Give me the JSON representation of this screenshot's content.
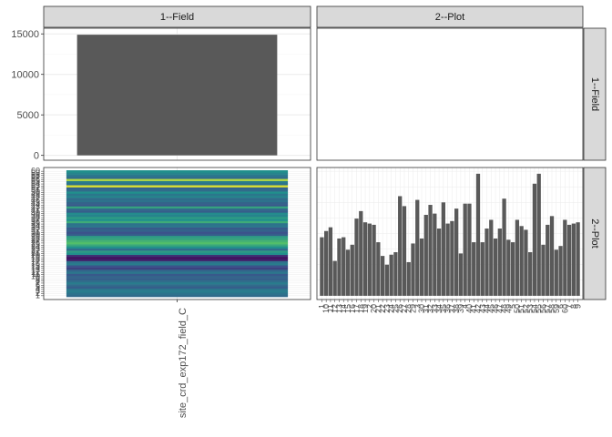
{
  "colors": {
    "strip_fill": "#d9d9d9",
    "panel_border": "#333333",
    "grid_major": "#ebebeb",
    "grid_minor": "#f5f5f5",
    "bar": "#595959",
    "viridis_low": "#440154",
    "viridis_mid": "#21908c",
    "viridis_high": "#fde725"
  },
  "chart_data": [
    {
      "type": "bar",
      "panel": "1--Field x 1--Field",
      "col_facet": "1--Field",
      "row_facet": "1--Field",
      "categories": [
        "site_crd_exp172_field_C"
      ],
      "values": [
        14900
      ],
      "ylim": [
        -600,
        15700
      ],
      "yticks": [
        0,
        5000,
        10000,
        15000
      ],
      "ytick_labels": [
        "0",
        "5000",
        "10000",
        "15000"
      ],
      "grid": true
    },
    {
      "type": "heatmap",
      "panel": "1--Field x 2--Plot",
      "col_facet": "1--Field",
      "row_facet": "2--Plot",
      "x_categories": [
        "site_crd_exp172_field_C"
      ],
      "rows": 60,
      "values": [
        0.35,
        0.38,
        0.42,
        0.4,
        0.3,
        0.35,
        0.42,
        0.36,
        0.3,
        0.33,
        0.28,
        0.4,
        0.33,
        0.2,
        0.25,
        0.42,
        0.38,
        0.1,
        0.05,
        0.15,
        0.5,
        0.55,
        0.35,
        0.5,
        0.6,
        0.7,
        0.65,
        0.58,
        0.55,
        0.3,
        0.25,
        0.32,
        0.28,
        0.4,
        0.38,
        0.62,
        0.5,
        0.55,
        0.45,
        0.48,
        0.3,
        0.35,
        0.58,
        0.28,
        0.32,
        0.38,
        0.35,
        0.45,
        0.4,
        0.5,
        0.35,
        0.32,
        0.95,
        0.38,
        0.42,
        0.88,
        0.35,
        0.4,
        0.45,
        0.5
      ],
      "grid": true
    },
    {
      "type": "bar",
      "panel": "2--Plot x 2--Plot",
      "col_facet": "2--Plot",
      "row_facet": "2--Plot",
      "categories": [
        "1",
        "10",
        "11",
        "12",
        "13",
        "14",
        "15",
        "16",
        "17",
        "18",
        "19",
        "2",
        "20",
        "21",
        "22",
        "23",
        "24",
        "25",
        "26",
        "27",
        "28",
        "29",
        "3",
        "30",
        "31",
        "32",
        "33",
        "34",
        "35",
        "36",
        "37",
        "38",
        "39",
        "4",
        "40",
        "41",
        "42",
        "43",
        "44",
        "45",
        "46",
        "47",
        "48",
        "49",
        "5",
        "50",
        "51",
        "52",
        "53",
        "54",
        "55",
        "56",
        "57",
        "58",
        "59",
        "6",
        "60",
        "7",
        "8",
        "9"
      ],
      "values": [
        47,
        52,
        55,
        28,
        46,
        47,
        37,
        41,
        62,
        68,
        59,
        58,
        57,
        43,
        32,
        25,
        33,
        35,
        80,
        72,
        27,
        42,
        77,
        46,
        65,
        73,
        66,
        54,
        75,
        58,
        60,
        70,
        34,
        74,
        74,
        43,
        98,
        43,
        54,
        61,
        46,
        54,
        78,
        45,
        43,
        61,
        56,
        53,
        35,
        90,
        98,
        41,
        57,
        64,
        37,
        40,
        61,
        57,
        58,
        59
      ],
      "ylim": [
        -3,
        103
      ],
      "grid": true
    }
  ],
  "strips": {
    "col_1": "1--Field",
    "col_2": "2--Plot",
    "row_1": "1--Field",
    "row_2": "2--Plot"
  },
  "x_tick_label": "site_crd_exp172_field_C"
}
